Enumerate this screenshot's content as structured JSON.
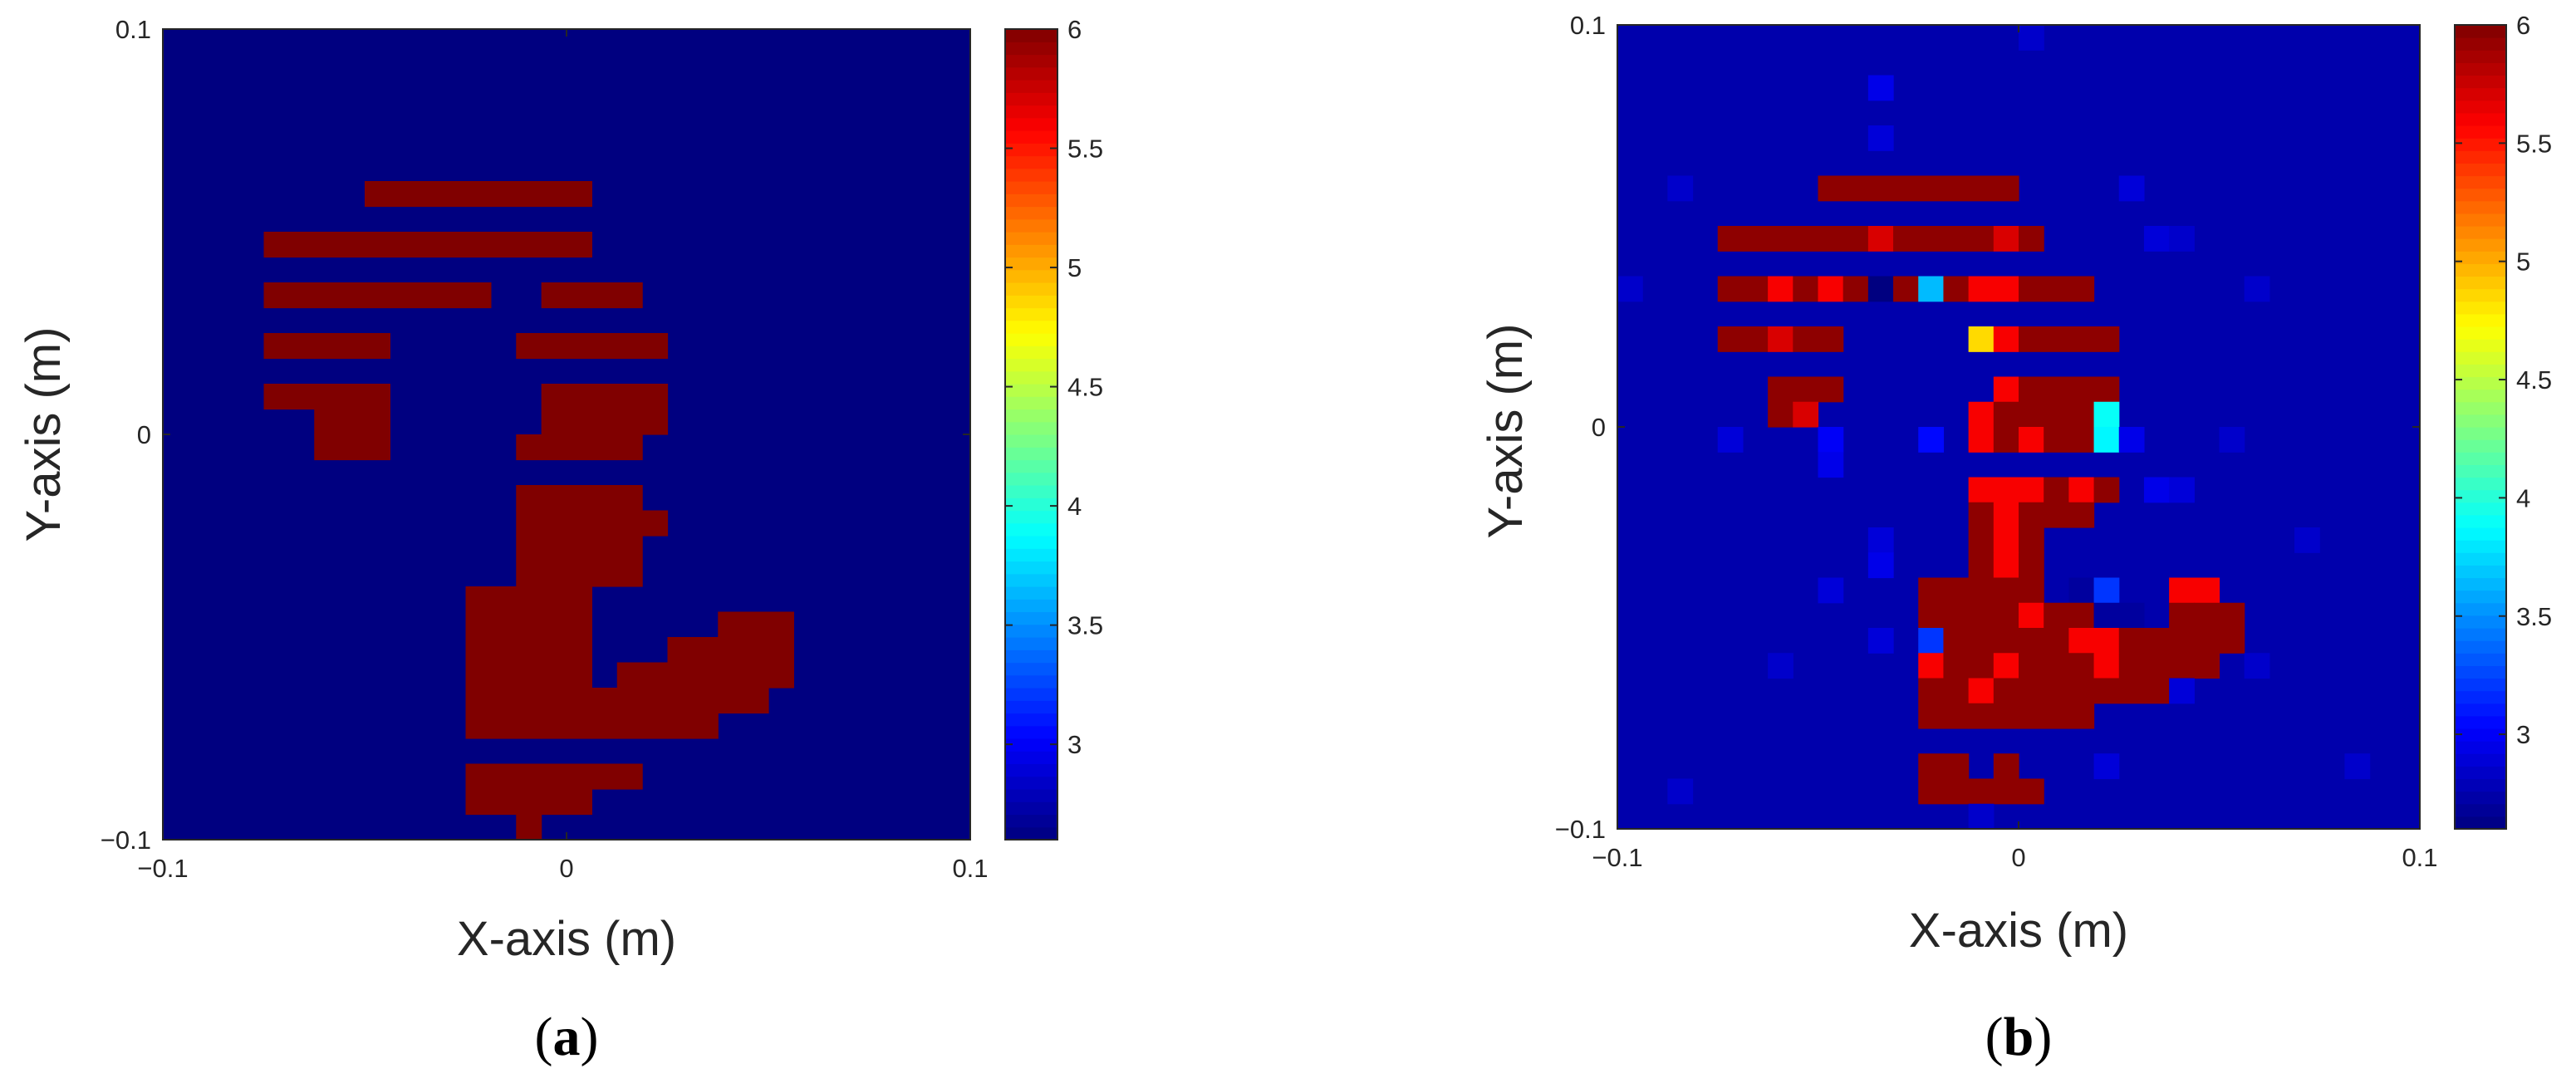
{
  "chart_data": [
    {
      "panel_label": "a",
      "type": "heatmap",
      "xlabel": "X-axis (m)",
      "ylabel": "Y-axis (m)",
      "xlim": [
        -0.1,
        0.1
      ],
      "ylim": [
        -0.1,
        0.1
      ],
      "xticks": [
        "−0.1",
        "0",
        "0.1"
      ],
      "yticks": [
        "−0.1",
        "0",
        "0.1"
      ],
      "xtick_values": [
        -0.1,
        0,
        0.1
      ],
      "ytick_values": [
        -0.1,
        0,
        0.1
      ],
      "colorbar": {
        "range": [
          2.6,
          6
        ],
        "ticks": [
          3,
          3.5,
          4,
          4.5,
          5,
          5.5,
          6
        ],
        "tick_labels": [
          "3",
          "3.5",
          "4",
          "4.5",
          "5",
          "5.5",
          "6"
        ],
        "colormap": "jet"
      },
      "grid": {
        "nx": 32,
        "ny": 32,
        "background": 2.6,
        "default_value": 6
      },
      "rows": [
        {
          "y": 0.0625,
          "x": [
            -0.025,
            -0.0125
          ]
        },
        {
          "y": 0.0563,
          "x": [
            -0.0438,
            0.0
          ]
        },
        {
          "y": 0.05,
          "x": [
            -0.0563,
            0.0062
          ]
        },
        {
          "y": 0.0438,
          "x": [
            -0.0688,
            0.0062
          ]
        },
        {
          "y": 0.0375,
          "x": [
            -0.0688,
            -0.0188,
            -0.0062,
            0.0125
          ]
        },
        {
          "y": 0.0313,
          "x": [
            -0.0688,
            -0.0375,
            -0.0062,
            0.0125
          ]
        },
        {
          "y": 0.025,
          "x": [
            -0.0688,
            -0.0438,
            -0.0062,
            0.0188
          ]
        },
        {
          "y": 0.0188,
          "x": [
            -0.0688,
            -0.0438,
            -0.0125,
            0.0188
          ]
        },
        {
          "y": 0.0125,
          "x": [
            -0.0688,
            -0.0438,
            -0.0062,
            0.0188
          ]
        },
        {
          "y": 0.0062,
          "x": [
            -0.0625,
            -0.0438,
            -0.0062,
            0.0188
          ]
        },
        {
          "y": 0.0,
          "x": [
            -0.0625,
            -0.0438,
            -0.0062,
            0.0125
          ]
        },
        {
          "y": -0.0062,
          "x": [
            -0.0625,
            -0.0625,
            -0.0125,
            0.0125
          ]
        },
        {
          "y": -0.0125,
          "x": [
            -0.0125,
            0.0125
          ]
        },
        {
          "y": -0.0188,
          "x": [
            -0.0125,
            0.0188
          ]
        },
        {
          "y": -0.025,
          "x": [
            -0.0125,
            0.0125
          ]
        },
        {
          "y": -0.0313,
          "x": [
            -0.0125,
            0.0125
          ]
        },
        {
          "y": -0.0375,
          "x": [
            -0.0188,
            0.0062
          ]
        },
        {
          "y": -0.0438,
          "x": [
            -0.0188,
            0.0062,
            0.0375,
            0.05
          ]
        },
        {
          "y": -0.05,
          "x": [
            -0.0188,
            0.0062,
            0.025,
            0.05
          ]
        },
        {
          "y": -0.0563,
          "x": [
            -0.0188,
            0.0062,
            0.0125,
            0.05
          ]
        },
        {
          "y": -0.0625,
          "x": [
            -0.0188,
            0.0438
          ]
        },
        {
          "y": -0.0688,
          "x": [
            -0.0188,
            0.0313
          ]
        },
        {
          "y": -0.075,
          "x": [
            -0.025,
            0.025
          ]
        },
        {
          "y": -0.0813,
          "x": [
            -0.0188,
            0.0125
          ]
        },
        {
          "y": -0.0875,
          "x": [
            -0.0188,
            0.0062
          ]
        },
        {
          "y": -0.0938,
          "x": [
            -0.0125,
            -0.0125
          ]
        }
      ],
      "cells": [
        {
          "x": 0.0125,
          "y": -0.0438,
          "v": 2.6
        }
      ]
    },
    {
      "panel_label": "b",
      "type": "heatmap",
      "xlabel": "X-axis (m)",
      "ylabel": "Y-axis (m)",
      "xlim": [
        -0.1,
        0.1
      ],
      "ylim": [
        -0.1,
        0.1
      ],
      "xticks": [
        "−0.1",
        "0",
        "0.1"
      ],
      "yticks": [
        "−0.1",
        "0",
        "0.1"
      ],
      "xtick_values": [
        -0.1,
        0,
        0.1
      ],
      "ytick_values": [
        -0.1,
        0,
        0.1
      ],
      "colorbar": {
        "range": [
          2.6,
          6
        ],
        "ticks": [
          3,
          3.5,
          4,
          4.5,
          5,
          5.5,
          6
        ],
        "tick_labels": [
          "3",
          "3.5",
          "4",
          "4.5",
          "5",
          "5.5",
          "6"
        ],
        "colormap": "jet"
      },
      "grid": {
        "nx": 32,
        "ny": 32,
        "background": 2.75,
        "default_value": 5.95
      },
      "rows": [
        {
          "y": 0.0625,
          "x": [
            -0.025,
            -0.0125
          ]
        },
        {
          "y": 0.0563,
          "x": [
            -0.0438,
            -0.0062
          ]
        },
        {
          "y": 0.05,
          "x": [
            -0.0563,
            0.0
          ]
        },
        {
          "y": 0.0438,
          "x": [
            -0.0688,
            0.0062
          ]
        },
        {
          "y": 0.0375,
          "x": [
            -0.0688,
            0.0125
          ]
        },
        {
          "y": 0.0313,
          "x": [
            -0.0688,
            -0.0125,
            -0.0062,
            0.0125
          ]
        },
        {
          "y": 0.025,
          "x": [
            -0.0688,
            -0.0438,
            -0.0125,
            0.0188
          ]
        },
        {
          "y": 0.0188,
          "x": [
            -0.0688,
            -0.0438,
            -0.0062,
            0.0188
          ]
        },
        {
          "y": 0.0125,
          "x": [
            -0.0625,
            -0.05,
            -0.0062,
            0.0188
          ]
        },
        {
          "y": 0.0062,
          "x": [
            -0.0625,
            -0.0563,
            -0.0125,
            0.0188
          ]
        },
        {
          "y": 0.0,
          "x": [
            -0.0625,
            -0.0625,
            -0.0125,
            0.0188
          ]
        },
        {
          "y": -0.0062,
          "x": [
            -0.0125,
            0.0188
          ]
        },
        {
          "y": -0.0125,
          "x": [
            -0.0125,
            0.0188
          ]
        },
        {
          "y": -0.0188,
          "x": [
            -0.0125,
            0.0125
          ]
        },
        {
          "y": -0.025,
          "x": [
            -0.0125,
            0.0062
          ]
        },
        {
          "y": -0.0313,
          "x": [
            -0.0125,
            0.0062
          ]
        },
        {
          "y": -0.0375,
          "x": [
            -0.0188,
            0.0062
          ]
        },
        {
          "y": -0.0438,
          "x": [
            -0.0188,
            0.0125,
            0.0375,
            0.05
          ]
        },
        {
          "y": -0.05,
          "x": [
            -0.0188,
            0.05
          ]
        },
        {
          "y": -0.0563,
          "x": [
            -0.0188,
            0.0438
          ]
        },
        {
          "y": -0.0625,
          "x": [
            -0.0188,
            0.0313
          ]
        },
        {
          "y": -0.0688,
          "x": [
            -0.0188,
            0.025
          ]
        },
        {
          "y": -0.075,
          "x": [
            -0.025,
            0.0125
          ]
        },
        {
          "y": -0.0813,
          "x": [
            -0.0188,
            0.0062
          ]
        },
        {
          "y": -0.0875,
          "x": [
            -0.0188,
            0.0
          ]
        }
      ],
      "cells": [
        {
          "x": -0.0563,
          "y": 0.0375,
          "v": 5.6
        },
        {
          "x": -0.05,
          "y": 0.0375,
          "v": 5.6
        },
        {
          "x": -0.0313,
          "y": 0.0438,
          "v": 5.7
        },
        {
          "x": -0.025,
          "y": 0.0375,
          "v": 5.7
        },
        {
          "x": -0.0062,
          "y": 0.0375,
          "v": 5.6
        },
        {
          "x": -0.0062,
          "y": 0.0438,
          "v": 5.7
        },
        {
          "x": -0.05,
          "y": 0.0313,
          "v": 5.6
        },
        {
          "x": -0.0438,
          "y": 0.0313,
          "v": 5.6
        },
        {
          "x": -0.0375,
          "y": 0.0313,
          "v": 3.65
        },
        {
          "x": -0.0313,
          "y": 0.0313,
          "v": 2.6
        },
        {
          "x": -0.025,
          "y": 0.0313,
          "v": 2.6
        },
        {
          "x": -0.0188,
          "y": 0.0313,
          "v": 3.65
        },
        {
          "x": -0.0125,
          "y": 0.0313,
          "v": 5.6
        },
        {
          "x": -0.0125,
          "y": 0.025,
          "v": 4.85
        },
        {
          "x": -0.0062,
          "y": 0.025,
          "v": 5.6
        },
        {
          "x": -0.0625,
          "y": 0.0188,
          "v": 5.7
        },
        {
          "x": -0.0563,
          "y": 0.0188,
          "v": 5.7
        },
        {
          "x": -0.0562,
          "y": 0.0062,
          "v": 5.7
        },
        {
          "x": -0.05,
          "y": 0.0062,
          "v": 2.75
        },
        {
          "x": -0.0062,
          "y": 0.0125,
          "v": 5.6
        },
        {
          "x": 0.0188,
          "y": 0.0062,
          "v": 3.9
        },
        {
          "x": 0.0188,
          "y": 0.0,
          "v": 3.85
        },
        {
          "x": -0.05,
          "y": 0.0,
          "v": 3.0
        },
        {
          "x": -0.0563,
          "y": 0.0,
          "v": 2.75
        },
        {
          "x": -0.025,
          "y": 0.0,
          "v": 3.05
        },
        {
          "x": -0.0188,
          "y": 0.0,
          "v": 3.05
        },
        {
          "x": -0.0125,
          "y": 0.0062,
          "v": 5.6
        },
        {
          "x": 0.0062,
          "y": 0.0,
          "v": 5.6
        },
        {
          "x": -0.0188,
          "y": -0.0062,
          "v": 3.05
        },
        {
          "x": -0.0125,
          "y": -0.0062,
          "v": 5.6
        },
        {
          "x": -0.0125,
          "y": -0.0125,
          "v": 5.6
        },
        {
          "x": -0.0062,
          "y": -0.0125,
          "v": 5.6
        },
        {
          "x": 0.0,
          "y": -0.0125,
          "v": 5.6
        },
        {
          "x": 0.0062,
          "y": -0.0125,
          "v": 5.6
        },
        {
          "x": 0.0125,
          "y": -0.0125,
          "v": 5.6
        },
        {
          "x": -0.0062,
          "y": -0.0188,
          "v": 5.6
        },
        {
          "x": -0.0062,
          "y": -0.025,
          "v": 5.6
        },
        {
          "x": -0.0062,
          "y": -0.0313,
          "v": 5.6
        },
        {
          "x": 0.0125,
          "y": -0.0375,
          "v": 2.7
        },
        {
          "x": 0.0188,
          "y": -0.0375,
          "v": 2.7
        },
        {
          "x": 0.0188,
          "y": -0.0438,
          "v": 2.7
        },
        {
          "x": 0.025,
          "y": -0.0438,
          "v": 2.7
        },
        {
          "x": 0.0375,
          "y": -0.0375,
          "v": 5.6
        },
        {
          "x": 0.0438,
          "y": -0.0375,
          "v": 5.6
        },
        {
          "x": 0.0062,
          "y": -0.0438,
          "v": 5.6
        },
        {
          "x": 0.0188,
          "y": -0.0375,
          "v": 3.2
        },
        {
          "x": 0.0125,
          "y": -0.05,
          "v": 5.6
        },
        {
          "x": 0.0188,
          "y": -0.05,
          "v": 5.6
        },
        {
          "x": -0.0188,
          "y": -0.05,
          "v": 3.2
        },
        {
          "x": -0.0188,
          "y": -0.0563,
          "v": 5.6
        },
        {
          "x": -0.0125,
          "y": -0.0625,
          "v": 5.6
        },
        {
          "x": -0.0062,
          "y": -0.0563,
          "v": 5.6
        },
        {
          "x": 0.0188,
          "y": -0.0563,
          "v": 5.6
        },
        {
          "x": 0.0,
          "y": -0.0813,
          "v": 3.35
        },
        {
          "x": -0.0125,
          "y": -0.0813,
          "v": 2.75
        },
        {
          "x": 0.0062,
          "y": -0.0813,
          "v": 2.75
        },
        {
          "x": 0.0188,
          "y": -0.0688,
          "v": 2.75
        },
        {
          "x": 0.025,
          "y": -0.0688,
          "v": 2.75
        },
        {
          "x": 0.025,
          "y": -0.0625,
          "v": 5.95
        }
      ],
      "noise": [
        {
          "x": -0.0313,
          "y": 0.0813,
          "v": 2.95
        },
        {
          "x": -0.0375,
          "y": 0.0688,
          "v": 2.9
        },
        {
          "x": 0.0,
          "y": 0.0938,
          "v": 2.85
        },
        {
          "x": -0.0813,
          "y": 0.0625,
          "v": 2.85
        },
        {
          "x": -0.0938,
          "y": 0.0313,
          "v": 2.85
        },
        {
          "x": -0.075,
          "y": 0.0,
          "v": 2.9
        },
        {
          "x": 0.025,
          "y": 0.0563,
          "v": 2.9
        },
        {
          "x": 0.0375,
          "y": 0.05,
          "v": 2.85
        },
        {
          "x": 0.0313,
          "y": 0.0438,
          "v": 2.9
        },
        {
          "x": 0.0563,
          "y": 0.0313,
          "v": 2.85
        },
        {
          "x": 0.05,
          "y": 0.0,
          "v": 2.85
        },
        {
          "x": 0.0688,
          "y": -0.025,
          "v": 2.85
        },
        {
          "x": 0.0313,
          "y": -0.0125,
          "v": 2.95
        },
        {
          "x": 0.0375,
          "y": -0.0125,
          "v": 2.9
        },
        {
          "x": 0.025,
          "y": 0.0,
          "v": 3.0
        },
        {
          "x": 0.025,
          "y": -0.0062,
          "v": 2.95
        },
        {
          "x": -0.0438,
          "y": -0.0063,
          "v": 2.95
        },
        {
          "x": -0.0375,
          "y": -0.025,
          "v": 2.9
        },
        {
          "x": -0.0313,
          "y": -0.0313,
          "v": 2.95
        },
        {
          "x": -0.0438,
          "y": -0.0375,
          "v": 2.9
        },
        {
          "x": -0.0313,
          "y": -0.05,
          "v": 2.9
        },
        {
          "x": -0.0625,
          "y": -0.0563,
          "v": 2.85
        },
        {
          "x": -0.025,
          "y": -0.0688,
          "v": 2.9
        },
        {
          "x": 0.0375,
          "y": -0.0625,
          "v": 2.9
        },
        {
          "x": 0.0563,
          "y": -0.0563,
          "v": 2.85
        },
        {
          "x": 0.0188,
          "y": -0.0813,
          "v": 2.9
        },
        {
          "x": -0.0063,
          "y": -0.0938,
          "v": 2.85
        },
        {
          "x": 0.0813,
          "y": -0.0813,
          "v": 2.85
        },
        {
          "x": -0.0875,
          "y": -0.0875,
          "v": 2.85
        }
      ]
    }
  ]
}
